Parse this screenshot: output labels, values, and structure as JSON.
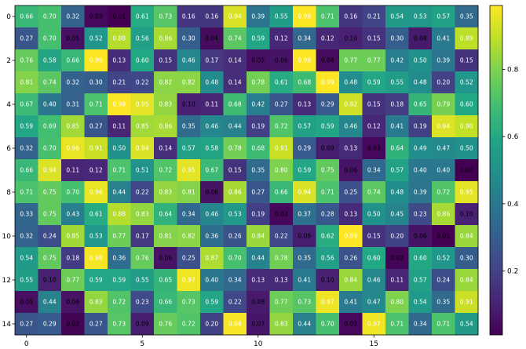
{
  "chart_data": {
    "type": "heatmap",
    "colormap": "viridis",
    "x_ticks": [
      0,
      5,
      10,
      15
    ],
    "y_ticks": [
      0,
      2,
      4,
      6,
      8,
      10,
      12,
      14
    ],
    "colorbar": {
      "vmin": 0.01,
      "vmax": 0.99,
      "ticks": [
        0.2,
        0.4,
        0.6,
        0.8
      ]
    },
    "values": [
      [
        0.66,
        0.7,
        0.32,
        0.03,
        0.01,
        0.61,
        0.73,
        0.16,
        0.16,
        0.94,
        0.39,
        0.55,
        0.99,
        0.71,
        0.16,
        0.21,
        0.54,
        0.53,
        0.57,
        0.35
      ],
      [
        0.27,
        0.7,
        0.05,
        0.52,
        0.88,
        0.56,
        0.86,
        0.3,
        0.04,
        0.74,
        0.59,
        0.12,
        0.34,
        0.12,
        0.1,
        0.15,
        0.3,
        0.08,
        0.41,
        0.89
      ],
      [
        0.76,
        0.58,
        0.66,
        0.99,
        0.13,
        0.6,
        0.15,
        0.46,
        0.17,
        0.14,
        0.05,
        0.06,
        0.99,
        0.04,
        0.77,
        0.77,
        0.42,
        0.5,
        0.39,
        0.15
      ],
      [
        0.81,
        0.74,
        0.32,
        0.3,
        0.21,
        0.22,
        0.82,
        0.82,
        0.48,
        0.14,
        0.78,
        0.61,
        0.68,
        0.99,
        0.48,
        0.59,
        0.55,
        0.48,
        0.2,
        0.52
      ],
      [
        0.67,
        0.4,
        0.31,
        0.71,
        0.99,
        0.95,
        0.83,
        0.1,
        0.11,
        0.68,
        0.42,
        0.27,
        0.13,
        0.29,
        0.92,
        0.15,
        0.18,
        0.65,
        0.79,
        0.6
      ],
      [
        0.59,
        0.69,
        0.85,
        0.27,
        0.11,
        0.85,
        0.86,
        0.35,
        0.46,
        0.44,
        0.19,
        0.72,
        0.57,
        0.59,
        0.46,
        0.12,
        0.41,
        0.19,
        0.94,
        0.9
      ],
      [
        0.32,
        0.7,
        0.96,
        0.91,
        0.5,
        0.94,
        0.14,
        0.57,
        0.58,
        0.78,
        0.68,
        0.91,
        0.29,
        0.09,
        0.13,
        0.03,
        0.64,
        0.49,
        0.47,
        0.5
      ],
      [
        0.66,
        0.94,
        0.11,
        0.12,
        0.71,
        0.51,
        0.72,
        0.95,
        0.67,
        0.15,
        0.35,
        0.8,
        0.59,
        0.75,
        0.06,
        0.34,
        0.57,
        0.4,
        0.4,
        0.0
      ],
      [
        0.71,
        0.75,
        0.7,
        0.96,
        0.44,
        0.22,
        0.83,
        0.81,
        0.06,
        0.86,
        0.27,
        0.66,
        0.94,
        0.71,
        0.25,
        0.74,
        0.48,
        0.39,
        0.72,
        0.95
      ],
      [
        0.33,
        0.75,
        0.43,
        0.61,
        0.88,
        0.83,
        0.64,
        0.34,
        0.46,
        0.53,
        0.19,
        0.03,
        0.37,
        0.28,
        0.13,
        0.5,
        0.45,
        0.23,
        0.86,
        0.1
      ],
      [
        0.32,
        0.24,
        0.85,
        0.53,
        0.77,
        0.17,
        0.81,
        0.82,
        0.36,
        0.26,
        0.84,
        0.22,
        0.09,
        0.62,
        0.99,
        0.15,
        0.2,
        0.06,
        0.01,
        0.84
      ],
      [
        0.54,
        0.75,
        0.18,
        0.98,
        0.36,
        0.76,
        0.06,
        0.25,
        0.87,
        0.7,
        0.44,
        0.78,
        0.35,
        0.56,
        0.26,
        0.6,
        0.02,
        0.6,
        0.52,
        0.3
      ],
      [
        0.55,
        0.1,
        0.77,
        0.59,
        0.59,
        0.55,
        0.65,
        0.97,
        0.4,
        0.34,
        0.13,
        0.13,
        0.41,
        0.1,
        0.84,
        0.46,
        0.11,
        0.57,
        0.24,
        0.84
      ],
      [
        0.05,
        0.44,
        0.06,
        0.83,
        0.72,
        0.23,
        0.66,
        0.73,
        0.59,
        0.22,
        0.08,
        0.77,
        0.73,
        0.97,
        0.41,
        0.47,
        0.8,
        0.54,
        0.35,
        0.91
      ],
      [
        0.27,
        0.29,
        0.02,
        0.27,
        0.73,
        0.09,
        0.76,
        0.72,
        0.2,
        0.98,
        0.07,
        0.83,
        0.44,
        0.7,
        0.03,
        0.97,
        0.71,
        0.34,
        0.71,
        0.54
      ]
    ]
  }
}
